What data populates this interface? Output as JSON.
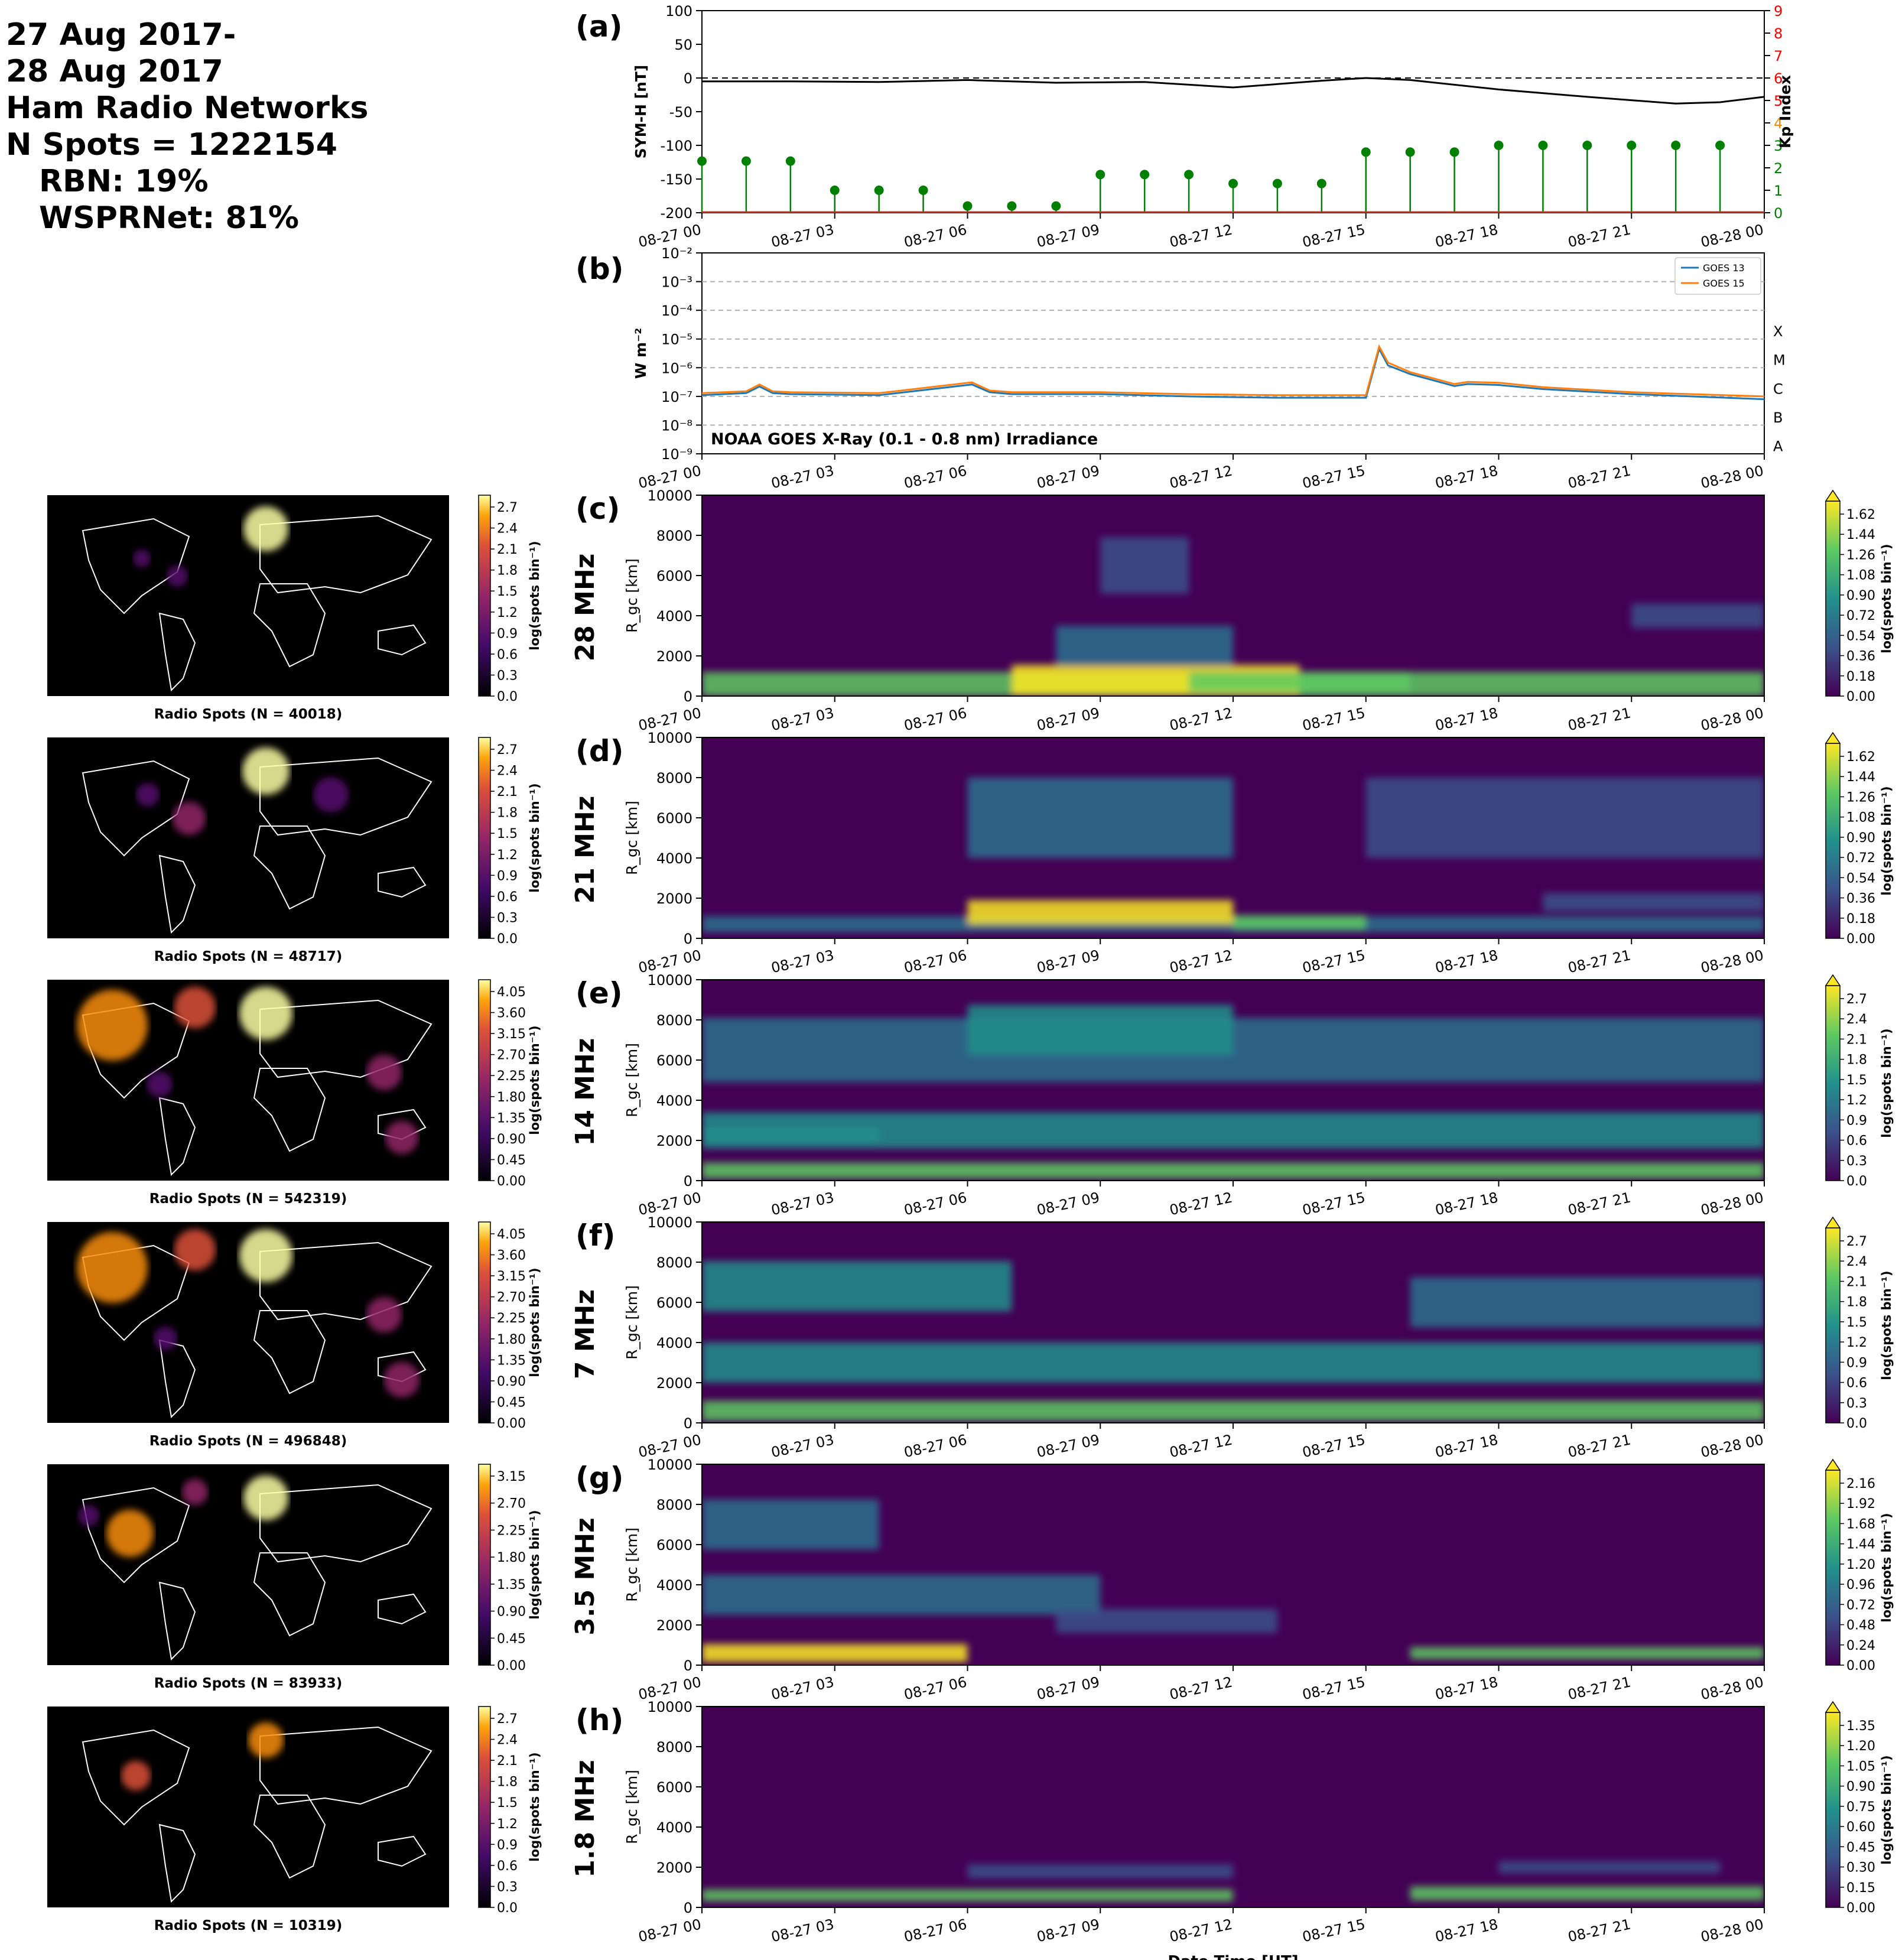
{
  "header": {
    "line1": "27 Aug 2017-",
    "line2": "28 Aug 2017",
    "line3": "Ham Radio Networks",
    "line4": "N Spots = 1222154",
    "line5": "RBN: 19%",
    "line6": "WSPRNet: 81%"
  },
  "time_ticks": [
    "08-27 00",
    "08-27 03",
    "08-27 06",
    "08-27 09",
    "08-27 12",
    "08-27 15",
    "08-27 18",
    "08-27 21",
    "08-28 00"
  ],
  "xlabel": "Date Time [UT]",
  "colors": {
    "symh": "#000000",
    "kp": "#008000",
    "kp_axis": "#ff0000",
    "goes13": "#1f77b4",
    "goes15": "#ff7f0e"
  },
  "chart_data": [
    {
      "panel": "(a)",
      "type": "line",
      "ylabel": "SYM-H [nT]",
      "ylim": [
        -200,
        100
      ],
      "yticks": [
        "100",
        "50",
        "0",
        "-50",
        "-100",
        "-150",
        "-200"
      ],
      "y2label": "Kp Index",
      "y2lim": [
        0,
        9
      ],
      "y2ticks": [
        "0",
        "1",
        "2",
        "3",
        "4",
        "5",
        "6",
        "7",
        "8",
        "9"
      ],
      "series": [
        {
          "x": [
            0,
            2,
            4,
            6,
            8,
            10,
            12,
            14,
            15,
            16,
            18,
            20,
            21,
            22,
            23,
            24
          ],
          "values": [
            -5,
            -5,
            -6,
            -3,
            -7,
            -6,
            -14,
            -4,
            0,
            -3,
            -17,
            -28,
            -33,
            -38,
            -36,
            -28
          ]
        },
        {
          "x": [
            0,
            1,
            2,
            3,
            4,
            5,
            6,
            7,
            8,
            9,
            10,
            11,
            12,
            13,
            14,
            15,
            16,
            17,
            18,
            19,
            20,
            21,
            22,
            23
          ],
          "values": [
            2.3,
            2.3,
            2.3,
            1,
            1,
            1,
            0.3,
            0.3,
            0.3,
            1.7,
            1.7,
            1.7,
            1.3,
            1.3,
            1.3,
            2.7,
            2.7,
            2.7,
            3,
            3,
            3,
            3,
            3,
            3
          ]
        }
      ]
    },
    {
      "panel": "(b)",
      "type": "line",
      "ylabel": "W m⁻²",
      "log_scale": true,
      "ylim": [
        1e-09,
        0.01
      ],
      "yticks": [
        "10⁻²",
        "10⁻³",
        "10⁻⁴",
        "10⁻⁵",
        "10⁻⁶",
        "10⁻⁷",
        "10⁻⁸",
        "10⁻⁹"
      ],
      "class_labels": [
        "X",
        "M",
        "C",
        "B",
        "A"
      ],
      "annotation": "NOAA GOES X-Ray (0.1 - 0.8 nm) Irradiance",
      "series": [
        {
          "name": "GOES 13",
          "x": [
            0,
            1,
            1.3,
            1.6,
            2,
            4,
            6.1,
            6.5,
            7,
            9,
            11,
            13,
            15,
            15.3,
            15.5,
            16,
            17,
            17.3,
            18,
            19,
            21,
            24
          ],
          "values": [
            1.1e-07,
            1.3e-07,
            2.2e-07,
            1.3e-07,
            1.2e-07,
            1.1e-07,
            2.6e-07,
            1.4e-07,
            1.2e-07,
            1.2e-07,
            1e-07,
            9e-08,
            9e-08,
            4.5e-06,
            1.2e-06,
            6e-07,
            2.3e-07,
            2.7e-07,
            2.5e-07,
            1.8e-07,
            1.2e-07,
            8e-08
          ]
        },
        {
          "name": "GOES 15",
          "x": [
            0,
            1,
            1.3,
            1.6,
            2,
            4,
            6.1,
            6.5,
            7,
            9,
            11,
            13,
            15,
            15.3,
            15.5,
            16,
            17,
            17.3,
            18,
            19,
            21,
            24
          ],
          "values": [
            1.3e-07,
            1.5e-07,
            2.6e-07,
            1.5e-07,
            1.4e-07,
            1.3e-07,
            3.1e-07,
            1.6e-07,
            1.4e-07,
            1.4e-07,
            1.2e-07,
            1.1e-07,
            1.1e-07,
            5.5e-06,
            1.5e-06,
            7e-07,
            2.7e-07,
            3.2e-07,
            3e-07,
            2.1e-07,
            1.4e-07,
            1e-07
          ]
        }
      ]
    },
    {
      "panel": "(c)",
      "type": "heatmap",
      "band": "28 MHz",
      "ylabel": "R_gc [km]",
      "ylim": [
        0,
        10000
      ],
      "yticks": [
        "10000",
        "8000",
        "6000",
        "4000",
        "2000",
        "0"
      ],
      "cbar_ticks": [
        "1.62",
        "1.44",
        "1.26",
        "1.08",
        "0.90",
        "0.72",
        "0.54",
        "0.36",
        "0.18",
        "0.00"
      ],
      "cbar_label": "log(spots bin⁻¹)",
      "map_title": "Radio Spots (N = 40018)",
      "map_cbar_ticks": [
        "2.7",
        "2.4",
        "2.1",
        "1.8",
        "1.5",
        "1.2",
        "0.9",
        "0.6",
        "0.3",
        "0.0"
      ]
    },
    {
      "panel": "(d)",
      "type": "heatmap",
      "band": "21 MHz",
      "ylabel": "R_gc [km]",
      "ylim": [
        0,
        10000
      ],
      "yticks": [
        "10000",
        "8000",
        "6000",
        "4000",
        "2000",
        "0"
      ],
      "cbar_ticks": [
        "1.62",
        "1.44",
        "1.26",
        "1.08",
        "0.90",
        "0.72",
        "0.54",
        "0.36",
        "0.18",
        "0.00"
      ],
      "cbar_label": "log(spots bin⁻¹)",
      "map_title": "Radio Spots (N = 48717)",
      "map_cbar_ticks": [
        "2.7",
        "2.4",
        "2.1",
        "1.8",
        "1.5",
        "1.2",
        "0.9",
        "0.6",
        "0.3",
        "0.0"
      ]
    },
    {
      "panel": "(e)",
      "type": "heatmap",
      "band": "14 MHz",
      "ylabel": "R_gc [km]",
      "ylim": [
        0,
        10000
      ],
      "yticks": [
        "10000",
        "8000",
        "6000",
        "4000",
        "2000",
        "0"
      ],
      "cbar_ticks": [
        "2.7",
        "2.4",
        "2.1",
        "1.8",
        "1.5",
        "1.2",
        "0.9",
        "0.6",
        "0.3",
        "0.0"
      ],
      "cbar_label": "log(spots bin⁻¹)",
      "map_title": "Radio Spots (N = 542319)",
      "map_cbar_ticks": [
        "4.05",
        "3.60",
        "3.15",
        "2.70",
        "2.25",
        "1.80",
        "1.35",
        "0.90",
        "0.45",
        "0.00"
      ]
    },
    {
      "panel": "(f)",
      "type": "heatmap",
      "band": "7 MHz",
      "ylabel": "R_gc [km]",
      "ylim": [
        0,
        10000
      ],
      "yticks": [
        "10000",
        "8000",
        "6000",
        "4000",
        "2000",
        "0"
      ],
      "cbar_ticks": [
        "2.7",
        "2.4",
        "2.1",
        "1.8",
        "1.5",
        "1.2",
        "0.9",
        "0.6",
        "0.3",
        "0.0"
      ],
      "cbar_label": "log(spots bin⁻¹)",
      "map_title": "Radio Spots (N = 496848)",
      "map_cbar_ticks": [
        "4.05",
        "3.60",
        "3.15",
        "2.70",
        "2.25",
        "1.80",
        "1.35",
        "0.90",
        "0.45",
        "0.00"
      ]
    },
    {
      "panel": "(g)",
      "type": "heatmap",
      "band": "3.5 MHz",
      "ylabel": "R_gc [km]",
      "ylim": [
        0,
        10000
      ],
      "yticks": [
        "10000",
        "8000",
        "6000",
        "4000",
        "2000",
        "0"
      ],
      "cbar_ticks": [
        "2.16",
        "1.92",
        "1.68",
        "1.44",
        "1.20",
        "0.96",
        "0.72",
        "0.48",
        "0.24",
        "0.00"
      ],
      "cbar_label": "log(spots bin⁻¹)",
      "map_title": "Radio Spots (N = 83933)",
      "map_cbar_ticks": [
        "3.15",
        "2.70",
        "2.25",
        "1.80",
        "1.35",
        "0.90",
        "0.45",
        "0.00"
      ]
    },
    {
      "panel": "(h)",
      "type": "heatmap",
      "band": "1.8 MHz",
      "ylabel": "R_gc [km]",
      "ylim": [
        0,
        10000
      ],
      "yticks": [
        "10000",
        "8000",
        "6000",
        "4000",
        "2000",
        "0"
      ],
      "cbar_ticks": [
        "1.35",
        "1.20",
        "1.05",
        "0.90",
        "0.75",
        "0.60",
        "0.45",
        "0.30",
        "0.15",
        "0.00"
      ],
      "cbar_label": "log(spots bin⁻¹)",
      "map_title": "Radio Spots (N = 10319)",
      "map_cbar_ticks": [
        "2.7",
        "2.4",
        "2.1",
        "1.8",
        "1.5",
        "1.2",
        "0.9",
        "0.6",
        "0.3",
        "0.0"
      ]
    }
  ]
}
